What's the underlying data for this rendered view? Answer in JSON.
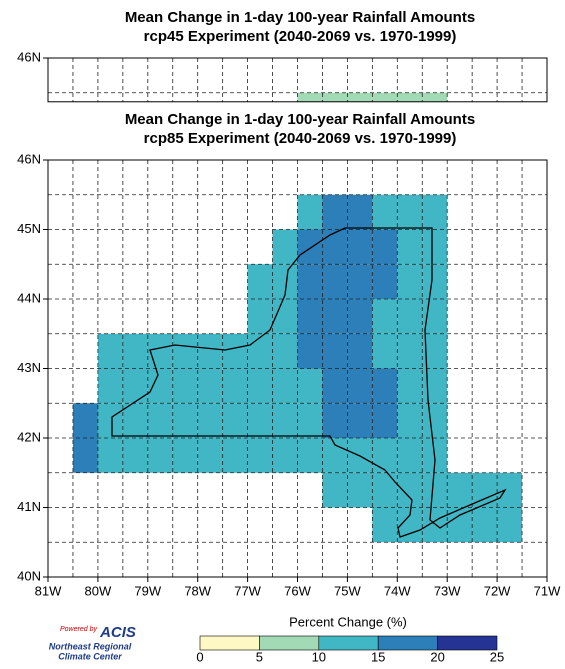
{
  "maps": [
    {
      "title": "Mean Change in 1-day 100-year Rainfall Amounts",
      "subtitle": "rcp45 Experiment (2040-2069 vs. 1970-1999)",
      "ylim": [
        45.37,
        46
      ],
      "yticks": [
        {
          "value": 46,
          "label": "46N"
        }
      ],
      "cells": [
        [
          -76,
          45,
          7.5
        ],
        [
          -75.5,
          45,
          7.5
        ],
        [
          -75,
          45,
          7.5
        ],
        [
          -74.5,
          45,
          7.5
        ],
        [
          -74,
          45,
          7.5
        ],
        [
          -73.5,
          45,
          7.5
        ]
      ]
    },
    {
      "title": "Mean Change in 1-day 100-year Rainfall Amounts",
      "subtitle": "rcp85 Experiment (2040-2069 vs. 1970-1999)",
      "ylim": [
        40,
        46
      ],
      "yticks": [
        {
          "value": 40,
          "label": "40N"
        },
        {
          "value": 41,
          "label": "41N"
        },
        {
          "value": 42,
          "label": "42N"
        },
        {
          "value": 43,
          "label": "43N"
        },
        {
          "value": 44,
          "label": "44N"
        },
        {
          "value": 45,
          "label": "45N"
        },
        {
          "value": 46,
          "label": "46N"
        }
      ],
      "xticks": [
        {
          "value": -81,
          "label": "81W"
        },
        {
          "value": -80,
          "label": "80W"
        },
        {
          "value": -79,
          "label": "79W"
        },
        {
          "value": -78,
          "label": "78W"
        },
        {
          "value": -77,
          "label": "77W"
        },
        {
          "value": -76,
          "label": "76W"
        },
        {
          "value": -75,
          "label": "75W"
        },
        {
          "value": -74,
          "label": "74W"
        },
        {
          "value": -73,
          "label": "73W"
        },
        {
          "value": -72,
          "label": "72W"
        },
        {
          "value": -71,
          "label": "71W"
        }
      ],
      "cells": [
        [
          -76,
          45,
          12.5
        ],
        [
          -75.5,
          45,
          17.5
        ],
        [
          -75,
          45,
          17.5
        ],
        [
          -74.5,
          45,
          12.5
        ],
        [
          -74,
          45,
          12.5
        ],
        [
          -73.5,
          45,
          12.5
        ],
        [
          -76.5,
          44.5,
          12.5
        ],
        [
          -76,
          44.5,
          17.5
        ],
        [
          -75.5,
          44.5,
          17.5
        ],
        [
          -75,
          44.5,
          17.5
        ],
        [
          -74.5,
          44.5,
          17.5
        ],
        [
          -74,
          44.5,
          12.5
        ],
        [
          -73.5,
          44.5,
          12.5
        ],
        [
          -77,
          44,
          12.5
        ],
        [
          -76.5,
          44,
          12.5
        ],
        [
          -76,
          44,
          17.5
        ],
        [
          -75.5,
          44,
          17.5
        ],
        [
          -75,
          44,
          17.5
        ],
        [
          -74.5,
          44,
          17.5
        ],
        [
          -74,
          44,
          12.5
        ],
        [
          -73.5,
          44,
          12.5
        ],
        [
          -77,
          43.5,
          12.5
        ],
        [
          -76.5,
          43.5,
          12.5
        ],
        [
          -76,
          43.5,
          17.5
        ],
        [
          -75.5,
          43.5,
          17.5
        ],
        [
          -75,
          43.5,
          17.5
        ],
        [
          -74.5,
          43.5,
          12.5
        ],
        [
          -74,
          43.5,
          12.5
        ],
        [
          -73.5,
          43.5,
          12.5
        ],
        [
          -80,
          43,
          12.5
        ],
        [
          -79.5,
          43,
          12.5
        ],
        [
          -79,
          43,
          12.5
        ],
        [
          -78.5,
          43,
          12.5
        ],
        [
          -78,
          43,
          12.5
        ],
        [
          -77.5,
          43,
          12.5
        ],
        [
          -77,
          43,
          12.5
        ],
        [
          -76.5,
          43,
          12.5
        ],
        [
          -76,
          43,
          17.5
        ],
        [
          -75.5,
          43,
          17.5
        ],
        [
          -75,
          43,
          17.5
        ],
        [
          -74.5,
          43,
          12.5
        ],
        [
          -74,
          43,
          12.5
        ],
        [
          -73.5,
          43,
          12.5
        ],
        [
          -80,
          42.5,
          12.5
        ],
        [
          -79.5,
          42.5,
          12.5
        ],
        [
          -79,
          42.5,
          12.5
        ],
        [
          -78.5,
          42.5,
          12.5
        ],
        [
          -78,
          42.5,
          12.5
        ],
        [
          -77.5,
          42.5,
          12.5
        ],
        [
          -77,
          42.5,
          12.5
        ],
        [
          -76.5,
          42.5,
          12.5
        ],
        [
          -76,
          42.5,
          12.5
        ],
        [
          -75.5,
          42.5,
          17.5
        ],
        [
          -75,
          42.5,
          17.5
        ],
        [
          -74.5,
          42.5,
          17.5
        ],
        [
          -74,
          42.5,
          12.5
        ],
        [
          -73.5,
          42.5,
          12.5
        ],
        [
          -80.5,
          42,
          17.5
        ],
        [
          -80,
          42,
          12.5
        ],
        [
          -79.5,
          42,
          12.5
        ],
        [
          -79,
          42,
          12.5
        ],
        [
          -78.5,
          42,
          12.5
        ],
        [
          -78,
          42,
          12.5
        ],
        [
          -77.5,
          42,
          12.5
        ],
        [
          -77,
          42,
          12.5
        ],
        [
          -76.5,
          42,
          12.5
        ],
        [
          -76,
          42,
          12.5
        ],
        [
          -75.5,
          42,
          17.5
        ],
        [
          -75,
          42,
          17.5
        ],
        [
          -74.5,
          42,
          17.5
        ],
        [
          -74,
          42,
          12.5
        ],
        [
          -73.5,
          42,
          12.5
        ],
        [
          -80.5,
          41.5,
          17.5
        ],
        [
          -80,
          41.5,
          12.5
        ],
        [
          -79.5,
          41.5,
          12.5
        ],
        [
          -79,
          41.5,
          12.5
        ],
        [
          -78.5,
          41.5,
          12.5
        ],
        [
          -78,
          41.5,
          12.5
        ],
        [
          -77.5,
          41.5,
          12.5
        ],
        [
          -77,
          41.5,
          12.5
        ],
        [
          -76.5,
          41.5,
          12.5
        ],
        [
          -76,
          41.5,
          12.5
        ],
        [
          -75.5,
          41.5,
          12.5
        ],
        [
          -75,
          41.5,
          12.5
        ],
        [
          -74.5,
          41.5,
          12.5
        ],
        [
          -74,
          41.5,
          12.5
        ],
        [
          -73.5,
          41.5,
          12.5
        ],
        [
          -75.5,
          41,
          12.5
        ],
        [
          -75,
          41,
          12.5
        ],
        [
          -74.5,
          41,
          12.5
        ],
        [
          -74,
          41,
          12.5
        ],
        [
          -73.5,
          41,
          12.5
        ],
        [
          -73,
          41,
          12.5
        ],
        [
          -72.5,
          41,
          12.5
        ],
        [
          -72,
          41,
          12.5
        ],
        [
          -74.5,
          40.5,
          12.5
        ],
        [
          -74,
          40.5,
          12.5
        ],
        [
          -73.5,
          40.5,
          12.5
        ],
        [
          -73,
          40.5,
          12.5
        ],
        [
          -72.5,
          40.5,
          12.5
        ],
        [
          -72,
          40.5,
          12.5
        ]
      ]
    }
  ],
  "xlim": [
    -81,
    -71
  ],
  "colorbar": {
    "title": "Percent Change (%)",
    "bounds": [
      0,
      5,
      10,
      15,
      20,
      25
    ],
    "colors": [
      "#fdf8c4",
      "#a1dab4",
      "#41b6c4",
      "#2c7fb8",
      "#253494"
    ]
  },
  "logo": {
    "powered": "Powered by",
    "name": "ACIS",
    "org1": "Northeast Regional",
    "org2": "Climate Center"
  }
}
